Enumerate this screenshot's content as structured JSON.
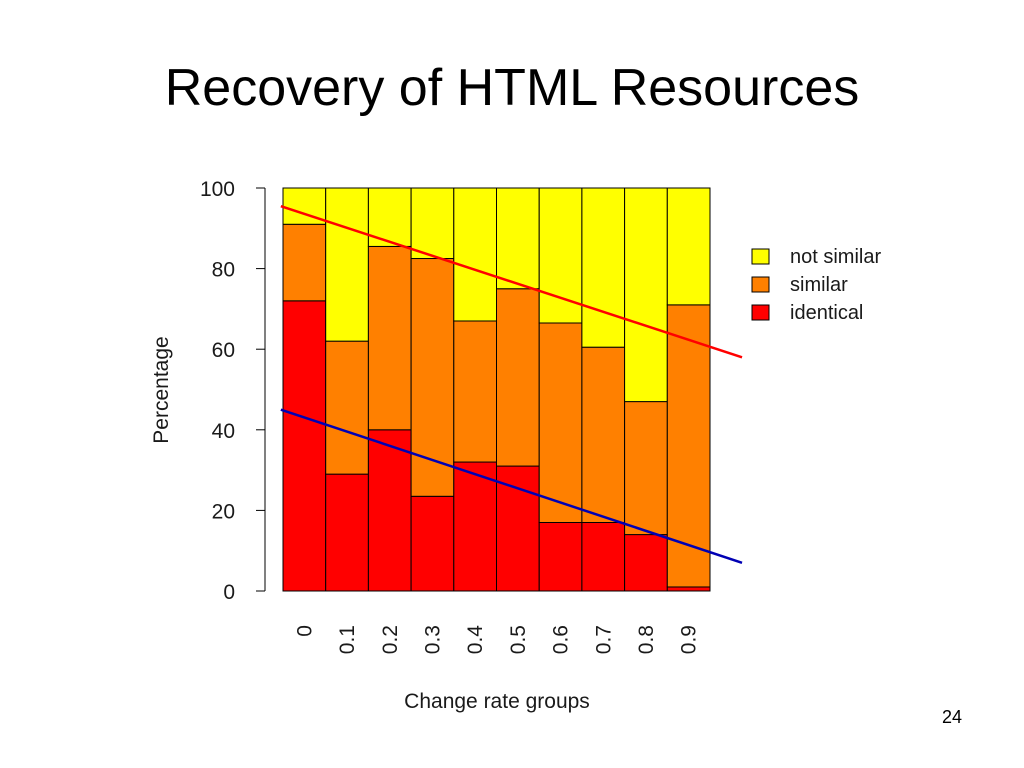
{
  "slide": {
    "title": "Recovery of HTML Resources",
    "page_number": "24"
  },
  "chart_data": {
    "type": "bar",
    "stacked": true,
    "percent": true,
    "categories": [
      "0",
      "0.1",
      "0.2",
      "0.3",
      "0.4",
      "0.5",
      "0.6",
      "0.7",
      "0.8",
      "0.9"
    ],
    "series": [
      {
        "name": "identical",
        "color": "#ff0000",
        "values": [
          72,
          29,
          40,
          23.5,
          32,
          31,
          17,
          17,
          14,
          1
        ]
      },
      {
        "name": "similar",
        "color": "#ff8000",
        "values": [
          19,
          33,
          45.5,
          59,
          35,
          44,
          49.5,
          43.5,
          33,
          70
        ]
      },
      {
        "name": "not similar",
        "color": "#ffff00",
        "values": [
          9,
          38,
          14.5,
          17.5,
          33,
          25,
          33.5,
          39.5,
          53,
          29
        ]
      }
    ],
    "legend": [
      "not similar",
      "similar",
      "identical"
    ],
    "legend_position": "right",
    "xlabel": "Change rate groups",
    "ylabel": "Percentage",
    "ylim": [
      0,
      100
    ],
    "yticks": [
      0,
      20,
      40,
      60,
      80,
      100
    ],
    "grid": false,
    "trend_lines": [
      {
        "color": "#ff0000",
        "x": [
          -0.05,
          10.75
        ],
        "y": [
          95.5,
          58
        ]
      },
      {
        "color": "#0000b4",
        "x": [
          -0.05,
          10.75
        ],
        "y": [
          45,
          7
        ]
      }
    ]
  }
}
